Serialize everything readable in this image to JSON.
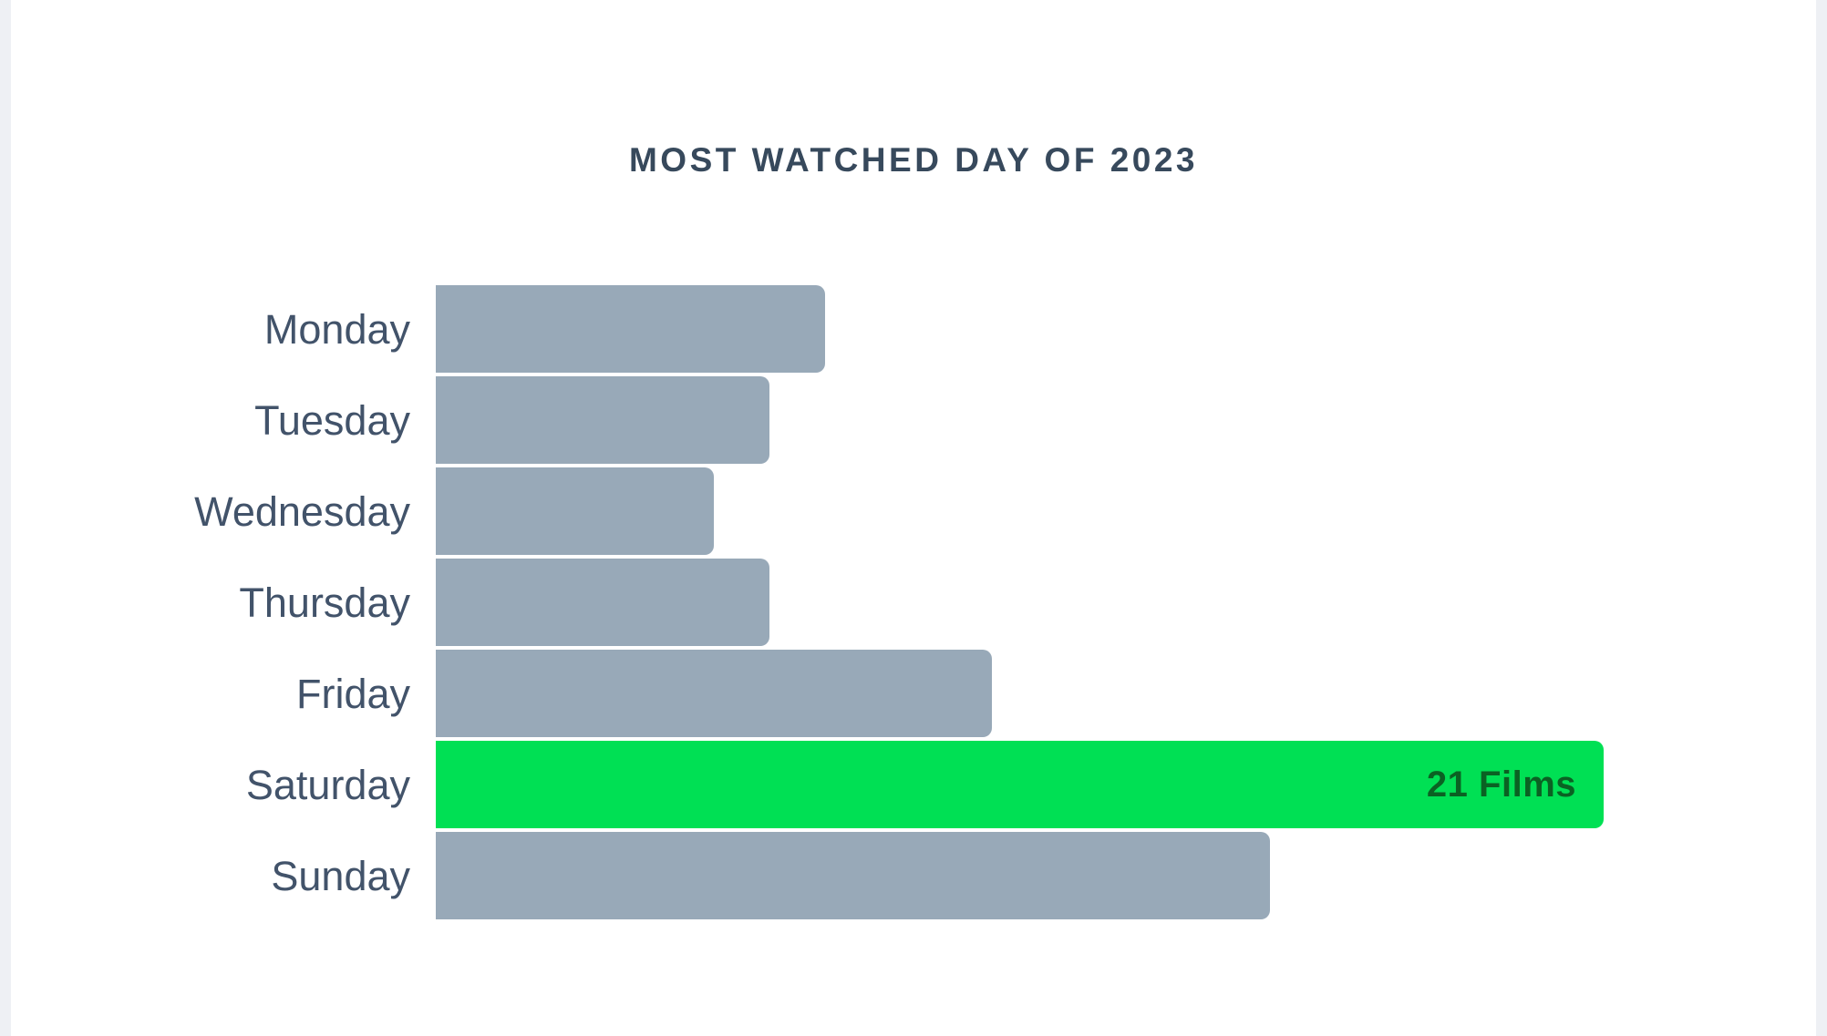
{
  "chart_data": {
    "type": "bar",
    "orientation": "horizontal",
    "title": "MOST WATCHED DAY OF 2023",
    "categories": [
      "Monday",
      "Tuesday",
      "Wednesday",
      "Thursday",
      "Friday",
      "Saturday",
      "Sunday"
    ],
    "values": [
      7,
      6,
      5,
      6,
      10,
      21,
      15
    ],
    "value_unit": "Films",
    "xlim": [
      0,
      21
    ],
    "grid": false,
    "value_axis_visible": false,
    "legend": "none",
    "highlight": {
      "category": "Saturday",
      "value": 21,
      "label": "21 Films"
    },
    "colors": {
      "background": "#ffffff",
      "page_margin": "#eef0f4",
      "bar": "#98a9b8",
      "highlight_bar": "#00e054",
      "highlight_text": "#0b6123",
      "title": "#37495c",
      "category_label": "#42536a"
    }
  }
}
